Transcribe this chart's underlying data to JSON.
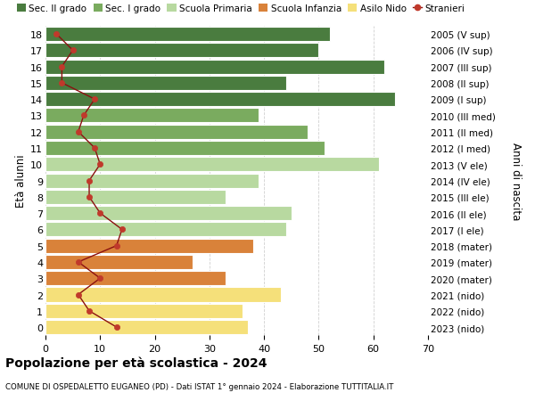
{
  "ages": [
    18,
    17,
    16,
    15,
    14,
    13,
    12,
    11,
    10,
    9,
    8,
    7,
    6,
    5,
    4,
    3,
    2,
    1,
    0
  ],
  "years": [
    "2005 (V sup)",
    "2006 (IV sup)",
    "2007 (III sup)",
    "2008 (II sup)",
    "2009 (I sup)",
    "2010 (III med)",
    "2011 (II med)",
    "2012 (I med)",
    "2013 (V ele)",
    "2014 (IV ele)",
    "2015 (III ele)",
    "2016 (II ele)",
    "2017 (I ele)",
    "2018 (mater)",
    "2019 (mater)",
    "2020 (mater)",
    "2021 (nido)",
    "2022 (nido)",
    "2023 (nido)"
  ],
  "bar_values": [
    52,
    50,
    62,
    44,
    64,
    39,
    48,
    51,
    61,
    39,
    33,
    45,
    44,
    38,
    27,
    33,
    43,
    36,
    37
  ],
  "stranieri_values": [
    2,
    5,
    3,
    3,
    9,
    7,
    6,
    9,
    10,
    8,
    8,
    10,
    14,
    13,
    6,
    10,
    6,
    8,
    13
  ],
  "bar_colors": [
    "#4a7c3f",
    "#4a7c3f",
    "#4a7c3f",
    "#4a7c3f",
    "#4a7c3f",
    "#7aab5f",
    "#7aab5f",
    "#7aab5f",
    "#b8d9a0",
    "#b8d9a0",
    "#b8d9a0",
    "#b8d9a0",
    "#b8d9a0",
    "#d9823a",
    "#d9823a",
    "#d9823a",
    "#f5e07a",
    "#f5e07a",
    "#f5e07a"
  ],
  "legend_colors": [
    "#4a7c3f",
    "#7aab5f",
    "#b8d9a0",
    "#d9823a",
    "#f5e07a",
    "#c0392b"
  ],
  "legend_labels": [
    "Sec. II grado",
    "Sec. I grado",
    "Scuola Primaria",
    "Scuola Infanzia",
    "Asilo Nido",
    "Stranieri"
  ],
  "ylabel_left": "Età alunni",
  "ylabel_right": "Anni di nascita",
  "title": "Popolazione per età scolastica - 2024",
  "subtitle": "COMUNE DI OSPEDALETTO EUGANEO (PD) - Dati ISTAT 1° gennaio 2024 - Elaborazione TUTTITALIA.IT",
  "xlim": [
    0,
    70
  ],
  "background_color": "#ffffff",
  "grid_color": "#d0d0d0"
}
